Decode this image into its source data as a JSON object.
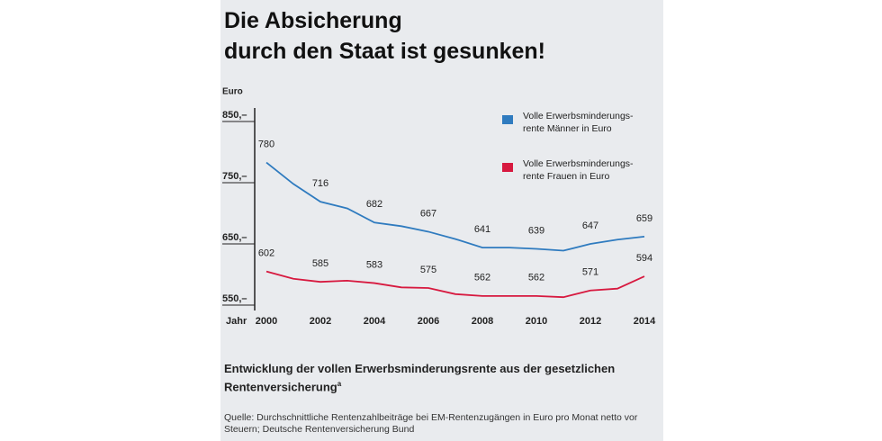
{
  "chart_data": {
    "type": "line",
    "title": "Die Absicherung\ndurch den Staat ist gesunken!",
    "y_label": "Euro",
    "x_label": "Jahr",
    "x": [
      2000,
      2001,
      2002,
      2003,
      2004,
      2005,
      2006,
      2007,
      2008,
      2009,
      2010,
      2011,
      2012,
      2013,
      2014
    ],
    "xlim": [
      2000,
      2014
    ],
    "xticks": [
      2000,
      2002,
      2004,
      2006,
      2008,
      2010,
      2012,
      2014
    ],
    "ylim": [
      550,
      850
    ],
    "yticks": [
      {
        "value": 850,
        "label": "850,–"
      },
      {
        "value": 750,
        "label": "750,–"
      },
      {
        "value": 650,
        "label": "650,–"
      },
      {
        "value": 550,
        "label": "550,–"
      }
    ],
    "grid": false,
    "legend": "upper right",
    "series": [
      {
        "name": "Volle Erwerbsminderungs-\nrente Männer in Euro",
        "color": "#2f7bbf",
        "values": [
          780,
          745,
          716,
          705,
          682,
          676,
          667,
          655,
          641,
          641,
          639,
          636,
          647,
          654,
          659
        ]
      },
      {
        "name": "Volle Erwerbsminderungs-\nrente Frauen in Euro",
        "color": "#d7193f",
        "values": [
          602,
          590,
          585,
          587,
          583,
          576,
          575,
          565,
          562,
          562,
          562,
          560,
          571,
          574,
          594
        ]
      }
    ],
    "caption": "Entwicklung der vollen Erwerbsminderungsrente aus der gesetzlichen Rentenversicherung",
    "caption_marker": "a",
    "source": "Quelle: Durchschnittliche Rentenzahlbeiträge bei EM-Rentenzugängen in Euro pro Monat netto vor Steuern; Deutsche Rentenversicherung Bund"
  }
}
